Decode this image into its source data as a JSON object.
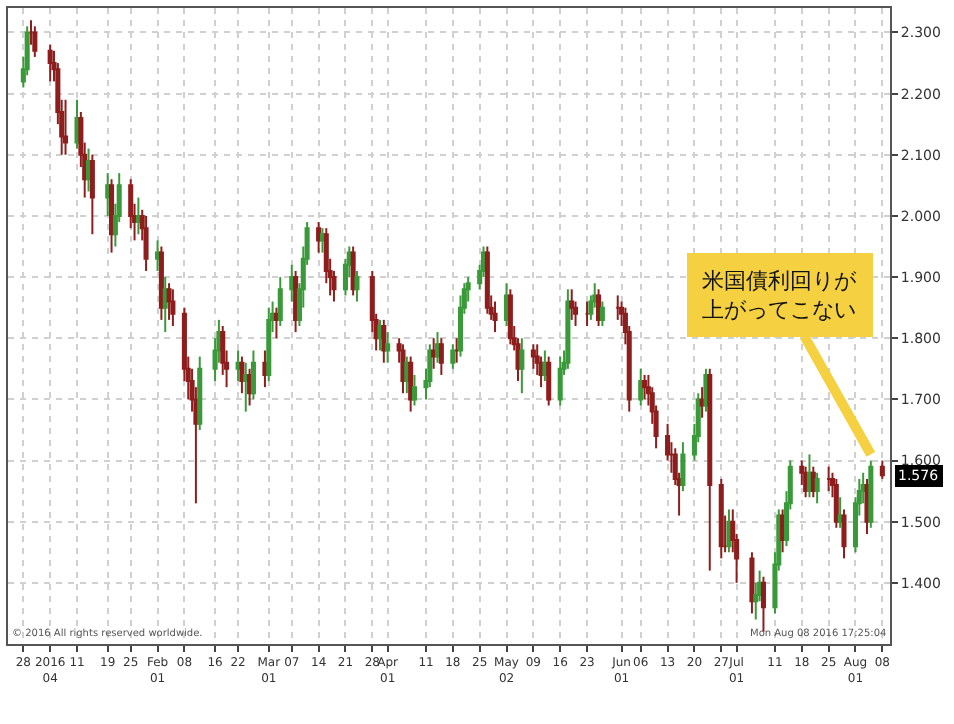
{
  "chart_data": {
    "type": "candlestick",
    "x": [
      "2015-12-28",
      "2015-12-29",
      "2015-12-30",
      "2015-12-31",
      "2016-01-04",
      "2016-01-05",
      "2016-01-06",
      "2016-01-07",
      "2016-01-08",
      "2016-01-11",
      "2016-01-12",
      "2016-01-13",
      "2016-01-14",
      "2016-01-15",
      "2016-01-19",
      "2016-01-20",
      "2016-01-21",
      "2016-01-22",
      "2016-01-25",
      "2016-01-26",
      "2016-01-27",
      "2016-01-28",
      "2016-01-29",
      "2016-02-01",
      "2016-02-02",
      "2016-02-03",
      "2016-02-04",
      "2016-02-05",
      "2016-02-08",
      "2016-02-09",
      "2016-02-10",
      "2016-02-11",
      "2016-02-12",
      "2016-02-16",
      "2016-02-17",
      "2016-02-18",
      "2016-02-19",
      "2016-02-22",
      "2016-02-23",
      "2016-02-24",
      "2016-02-25",
      "2016-02-26",
      "2016-02-29",
      "2016-03-01",
      "2016-03-02",
      "2016-03-03",
      "2016-03-04",
      "2016-03-07",
      "2016-03-08",
      "2016-03-09",
      "2016-03-10",
      "2016-03-11",
      "2016-03-14",
      "2016-03-15",
      "2016-03-16",
      "2016-03-17",
      "2016-03-18",
      "2016-03-21",
      "2016-03-22",
      "2016-03-23",
      "2016-03-24",
      "2016-03-28",
      "2016-03-29",
      "2016-03-30",
      "2016-03-31",
      "2016-04-01",
      "2016-04-04",
      "2016-04-05",
      "2016-04-06",
      "2016-04-07",
      "2016-04-08",
      "2016-04-11",
      "2016-04-12",
      "2016-04-13",
      "2016-04-14",
      "2016-04-15",
      "2016-04-18",
      "2016-04-19",
      "2016-04-20",
      "2016-04-21",
      "2016-04-22",
      "2016-04-25",
      "2016-04-26",
      "2016-04-27",
      "2016-04-28",
      "2016-04-29",
      "2016-05-02",
      "2016-05-03",
      "2016-05-04",
      "2016-05-05",
      "2016-05-06",
      "2016-05-09",
      "2016-05-10",
      "2016-05-11",
      "2016-05-12",
      "2016-05-13",
      "2016-05-16",
      "2016-05-17",
      "2016-05-18",
      "2016-05-19",
      "2016-05-20",
      "2016-05-23",
      "2016-05-24",
      "2016-05-25",
      "2016-05-26",
      "2016-05-27",
      "2016-05-31",
      "2016-06-01",
      "2016-06-02",
      "2016-06-03",
      "2016-06-06",
      "2016-06-07",
      "2016-06-08",
      "2016-06-09",
      "2016-06-10",
      "2016-06-13",
      "2016-06-14",
      "2016-06-15",
      "2016-06-16",
      "2016-06-17",
      "2016-06-20",
      "2016-06-21",
      "2016-06-22",
      "2016-06-23",
      "2016-06-24",
      "2016-06-27",
      "2016-06-28",
      "2016-06-29",
      "2016-06-30",
      "2016-07-01",
      "2016-07-05",
      "2016-07-06",
      "2016-07-07",
      "2016-07-08",
      "2016-07-11",
      "2016-07-12",
      "2016-07-13",
      "2016-07-14",
      "2016-07-15",
      "2016-07-18",
      "2016-07-19",
      "2016-07-20",
      "2016-07-21",
      "2016-07-22",
      "2016-07-25",
      "2016-07-26",
      "2016-07-27",
      "2016-07-28",
      "2016-07-29",
      "2016-08-01",
      "2016-08-02",
      "2016-08-03",
      "2016-08-04",
      "2016-08-05",
      "2016-08-08"
    ],
    "ohlc": [
      [
        2.22,
        2.26,
        2.21,
        2.24
      ],
      [
        2.24,
        2.31,
        2.23,
        2.3
      ],
      [
        2.3,
        2.32,
        2.28,
        2.3
      ],
      [
        2.3,
        2.31,
        2.26,
        2.27
      ],
      [
        2.27,
        2.28,
        2.22,
        2.25
      ],
      [
        2.25,
        2.27,
        2.22,
        2.24
      ],
      [
        2.24,
        2.25,
        2.15,
        2.17
      ],
      [
        2.17,
        2.19,
        2.1,
        2.13
      ],
      [
        2.13,
        2.19,
        2.1,
        2.12
      ],
      [
        2.12,
        2.19,
        2.11,
        2.16
      ],
      [
        2.16,
        2.17,
        2.08,
        2.1
      ],
      [
        2.1,
        2.12,
        2.03,
        2.06
      ],
      [
        2.06,
        2.11,
        2.04,
        2.09
      ],
      [
        2.09,
        2.1,
        1.97,
        2.03
      ],
      [
        2.03,
        2.07,
        2.0,
        2.05
      ],
      [
        2.05,
        2.06,
        1.94,
        1.97
      ],
      [
        1.97,
        2.02,
        1.95,
        2.0
      ],
      [
        2.0,
        2.07,
        1.99,
        2.05
      ],
      [
        2.05,
        2.06,
        1.98,
        2.0
      ],
      [
        2.0,
        2.02,
        1.96,
        1.99
      ],
      [
        1.99,
        2.03,
        1.97,
        2.0
      ],
      [
        2.0,
        2.01,
        1.96,
        1.98
      ],
      [
        1.98,
        2.0,
        1.91,
        1.93
      ],
      [
        1.93,
        1.96,
        1.91,
        1.94
      ],
      [
        1.94,
        1.95,
        1.83,
        1.85
      ],
      [
        1.85,
        1.9,
        1.81,
        1.88
      ],
      [
        1.88,
        1.89,
        1.83,
        1.86
      ],
      [
        1.86,
        1.88,
        1.82,
        1.84
      ],
      [
        1.84,
        1.85,
        1.73,
        1.75
      ],
      [
        1.75,
        1.77,
        1.7,
        1.73
      ],
      [
        1.73,
        1.75,
        1.68,
        1.7
      ],
      [
        1.7,
        1.72,
        1.53,
        1.66
      ],
      [
        1.66,
        1.77,
        1.65,
        1.75
      ],
      [
        1.75,
        1.8,
        1.73,
        1.78
      ],
      [
        1.78,
        1.83,
        1.76,
        1.81
      ],
      [
        1.81,
        1.82,
        1.74,
        1.76
      ],
      [
        1.76,
        1.78,
        1.72,
        1.75
      ],
      [
        1.75,
        1.78,
        1.73,
        1.76
      ],
      [
        1.76,
        1.77,
        1.71,
        1.73
      ],
      [
        1.73,
        1.76,
        1.68,
        1.74
      ],
      [
        1.74,
        1.75,
        1.69,
        1.71
      ],
      [
        1.71,
        1.78,
        1.7,
        1.76
      ],
      [
        1.76,
        1.78,
        1.72,
        1.74
      ],
      [
        1.74,
        1.85,
        1.73,
        1.83
      ],
      [
        1.83,
        1.86,
        1.81,
        1.84
      ],
      [
        1.84,
        1.85,
        1.8,
        1.83
      ],
      [
        1.83,
        1.9,
        1.82,
        1.88
      ],
      [
        1.88,
        1.92,
        1.86,
        1.9
      ],
      [
        1.9,
        1.91,
        1.81,
        1.83
      ],
      [
        1.83,
        1.89,
        1.82,
        1.88
      ],
      [
        1.88,
        1.95,
        1.85,
        1.93
      ],
      [
        1.93,
        1.99,
        1.92,
        1.98
      ],
      [
        1.98,
        1.99,
        1.94,
        1.96
      ],
      [
        1.96,
        1.98,
        1.94,
        1.97
      ],
      [
        1.97,
        1.98,
        1.89,
        1.91
      ],
      [
        1.91,
        1.93,
        1.87,
        1.9
      ],
      [
        1.9,
        1.91,
        1.86,
        1.88
      ],
      [
        1.88,
        1.93,
        1.87,
        1.92
      ],
      [
        1.92,
        1.95,
        1.9,
        1.94
      ],
      [
        1.94,
        1.95,
        1.87,
        1.88
      ],
      [
        1.88,
        1.91,
        1.86,
        1.9
      ],
      [
        1.9,
        1.91,
        1.81,
        1.83
      ],
      [
        1.83,
        1.84,
        1.78,
        1.8
      ],
      [
        1.8,
        1.83,
        1.78,
        1.82
      ],
      [
        1.82,
        1.83,
        1.76,
        1.78
      ],
      [
        1.78,
        1.81,
        1.76,
        1.79
      ],
      [
        1.79,
        1.8,
        1.76,
        1.78
      ],
      [
        1.78,
        1.79,
        1.71,
        1.73
      ],
      [
        1.73,
        1.77,
        1.71,
        1.76
      ],
      [
        1.76,
        1.77,
        1.68,
        1.7
      ],
      [
        1.7,
        1.74,
        1.69,
        1.72
      ],
      [
        1.72,
        1.75,
        1.7,
        1.73
      ],
      [
        1.73,
        1.79,
        1.72,
        1.78
      ],
      [
        1.78,
        1.8,
        1.75,
        1.77
      ],
      [
        1.77,
        1.81,
        1.76,
        1.79
      ],
      [
        1.79,
        1.8,
        1.74,
        1.76
      ],
      [
        1.76,
        1.79,
        1.75,
        1.78
      ],
      [
        1.78,
        1.8,
        1.76,
        1.78
      ],
      [
        1.78,
        1.87,
        1.77,
        1.85
      ],
      [
        1.85,
        1.89,
        1.84,
        1.88
      ],
      [
        1.88,
        1.9,
        1.86,
        1.89
      ],
      [
        1.89,
        1.92,
        1.88,
        1.91
      ],
      [
        1.91,
        1.95,
        1.9,
        1.94
      ],
      [
        1.94,
        1.95,
        1.84,
        1.85
      ],
      [
        1.85,
        1.87,
        1.83,
        1.84
      ],
      [
        1.84,
        1.86,
        1.81,
        1.83
      ],
      [
        1.83,
        1.89,
        1.82,
        1.87
      ],
      [
        1.87,
        1.88,
        1.79,
        1.8
      ],
      [
        1.8,
        1.82,
        1.78,
        1.79
      ],
      [
        1.79,
        1.8,
        1.73,
        1.75
      ],
      [
        1.75,
        1.8,
        1.71,
        1.78
      ],
      [
        1.78,
        1.79,
        1.75,
        1.77
      ],
      [
        1.77,
        1.79,
        1.74,
        1.76
      ],
      [
        1.76,
        1.77,
        1.72,
        1.74
      ],
      [
        1.74,
        1.78,
        1.73,
        1.76
      ],
      [
        1.76,
        1.77,
        1.69,
        1.7
      ],
      [
        1.7,
        1.77,
        1.69,
        1.75
      ],
      [
        1.75,
        1.78,
        1.74,
        1.76
      ],
      [
        1.76,
        1.88,
        1.75,
        1.86
      ],
      [
        1.86,
        1.88,
        1.83,
        1.85
      ],
      [
        1.85,
        1.86,
        1.82,
        1.84
      ],
      [
        1.84,
        1.86,
        1.82,
        1.84
      ],
      [
        1.84,
        1.87,
        1.83,
        1.86
      ],
      [
        1.86,
        1.89,
        1.85,
        1.87
      ],
      [
        1.87,
        1.88,
        1.82,
        1.83
      ],
      [
        1.83,
        1.86,
        1.82,
        1.85
      ],
      [
        1.85,
        1.87,
        1.83,
        1.85
      ],
      [
        1.85,
        1.86,
        1.82,
        1.84
      ],
      [
        1.84,
        1.85,
        1.79,
        1.81
      ],
      [
        1.81,
        1.82,
        1.68,
        1.7
      ],
      [
        1.7,
        1.75,
        1.69,
        1.73
      ],
      [
        1.73,
        1.74,
        1.7,
        1.72
      ],
      [
        1.72,
        1.74,
        1.69,
        1.71
      ],
      [
        1.71,
        1.72,
        1.66,
        1.68
      ],
      [
        1.68,
        1.69,
        1.62,
        1.64
      ],
      [
        1.64,
        1.66,
        1.6,
        1.61
      ],
      [
        1.61,
        1.63,
        1.58,
        1.61
      ],
      [
        1.61,
        1.62,
        1.56,
        1.57
      ],
      [
        1.57,
        1.58,
        1.51,
        1.56
      ],
      [
        1.56,
        1.63,
        1.55,
        1.61
      ],
      [
        1.61,
        1.66,
        1.6,
        1.64
      ],
      [
        1.64,
        1.71,
        1.63,
        1.7
      ],
      [
        1.7,
        1.72,
        1.67,
        1.69
      ],
      [
        1.69,
        1.75,
        1.68,
        1.74
      ],
      [
        1.74,
        1.75,
        1.42,
        1.56
      ],
      [
        1.56,
        1.57,
        1.44,
        1.46
      ],
      [
        1.46,
        1.51,
        1.45,
        1.46
      ],
      [
        1.46,
        1.52,
        1.45,
        1.5
      ],
      [
        1.5,
        1.52,
        1.45,
        1.47
      ],
      [
        1.47,
        1.48,
        1.4,
        1.44
      ],
      [
        1.44,
        1.45,
        1.35,
        1.37
      ],
      [
        1.37,
        1.4,
        1.34,
        1.38
      ],
      [
        1.38,
        1.42,
        1.37,
        1.4
      ],
      [
        1.4,
        1.41,
        1.32,
        1.36
      ],
      [
        1.36,
        1.45,
        1.35,
        1.43
      ],
      [
        1.43,
        1.52,
        1.42,
        1.51
      ],
      [
        1.51,
        1.52,
        1.45,
        1.47
      ],
      [
        1.47,
        1.55,
        1.46,
        1.53
      ],
      [
        1.53,
        1.6,
        1.52,
        1.59
      ],
      [
        1.59,
        1.6,
        1.56,
        1.58
      ],
      [
        1.58,
        1.59,
        1.54,
        1.55
      ],
      [
        1.55,
        1.61,
        1.54,
        1.58
      ],
      [
        1.58,
        1.59,
        1.54,
        1.55
      ],
      [
        1.55,
        1.58,
        1.53,
        1.57
      ],
      [
        1.57,
        1.59,
        1.55,
        1.57
      ],
      [
        1.57,
        1.58,
        1.54,
        1.56
      ],
      [
        1.56,
        1.57,
        1.49,
        1.5
      ],
      [
        1.5,
        1.54,
        1.49,
        1.51
      ],
      [
        1.51,
        1.52,
        1.44,
        1.46
      ],
      [
        1.46,
        1.54,
        1.45,
        1.53
      ],
      [
        1.53,
        1.57,
        1.51,
        1.55
      ],
      [
        1.55,
        1.58,
        1.53,
        1.56
      ],
      [
        1.56,
        1.57,
        1.48,
        1.5
      ],
      [
        1.5,
        1.6,
        1.49,
        1.59
      ],
      [
        1.59,
        1.6,
        1.57,
        1.576
      ]
    ],
    "colors": [
      "#3a9a3a",
      "#3a9a3a",
      "#8e1e1e",
      "#8e1e1e",
      "#8e1e1e",
      "#8e1e1e",
      "#8e1e1e",
      "#8e1e1e",
      "#8e1e1e",
      "#3a9a3a",
      "#8e1e1e",
      "#8e1e1e",
      "#3a9a3a",
      "#8e1e1e",
      "#3a9a3a",
      "#8e1e1e",
      "#3a9a3a",
      "#3a9a3a",
      "#8e1e1e",
      "#8e1e1e",
      "#3a9a3a",
      "#8e1e1e",
      "#8e1e1e",
      "#3a9a3a",
      "#8e1e1e",
      "#3a9a3a",
      "#8e1e1e",
      "#8e1e1e",
      "#8e1e1e",
      "#8e1e1e",
      "#8e1e1e",
      "#8e1e1e",
      "#3a9a3a",
      "#3a9a3a",
      "#3a9a3a",
      "#8e1e1e",
      "#8e1e1e",
      "#3a9a3a",
      "#8e1e1e",
      "#3a9a3a",
      "#8e1e1e",
      "#3a9a3a",
      "#8e1e1e",
      "#3a9a3a",
      "#3a9a3a",
      "#8e1e1e",
      "#3a9a3a",
      "#3a9a3a",
      "#8e1e1e",
      "#3a9a3a",
      "#3a9a3a",
      "#3a9a3a",
      "#8e1e1e",
      "#3a9a3a",
      "#8e1e1e",
      "#8e1e1e",
      "#8e1e1e",
      "#3a9a3a",
      "#3a9a3a",
      "#8e1e1e",
      "#3a9a3a",
      "#8e1e1e",
      "#8e1e1e",
      "#3a9a3a",
      "#8e1e1e",
      "#3a9a3a",
      "#8e1e1e",
      "#8e1e1e",
      "#3a9a3a",
      "#8e1e1e",
      "#3a9a3a",
      "#3a9a3a",
      "#3a9a3a",
      "#8e1e1e",
      "#3a9a3a",
      "#8e1e1e",
      "#3a9a3a",
      "#8e1e1e",
      "#3a9a3a",
      "#3a9a3a",
      "#3a9a3a",
      "#3a9a3a",
      "#3a9a3a",
      "#8e1e1e",
      "#8e1e1e",
      "#8e1e1e",
      "#3a9a3a",
      "#8e1e1e",
      "#8e1e1e",
      "#8e1e1e",
      "#3a9a3a",
      "#8e1e1e",
      "#8e1e1e",
      "#8e1e1e",
      "#3a9a3a",
      "#8e1e1e",
      "#3a9a3a",
      "#3a9a3a",
      "#3a9a3a",
      "#8e1e1e",
      "#8e1e1e",
      "#8e1e1e",
      "#3a9a3a",
      "#3a9a3a",
      "#8e1e1e",
      "#3a9a3a",
      "#8e1e1e",
      "#8e1e1e",
      "#8e1e1e",
      "#8e1e1e",
      "#3a9a3a",
      "#8e1e1e",
      "#8e1e1e",
      "#8e1e1e",
      "#8e1e1e",
      "#8e1e1e",
      "#8e1e1e",
      "#8e1e1e",
      "#8e1e1e",
      "#3a9a3a",
      "#3a9a3a",
      "#3a9a3a",
      "#8e1e1e",
      "#3a9a3a",
      "#8e1e1e",
      "#8e1e1e",
      "#8e1e1e",
      "#3a9a3a",
      "#8e1e1e",
      "#8e1e1e",
      "#8e1e1e",
      "#3a9a3a",
      "#3a9a3a",
      "#8e1e1e",
      "#3a9a3a",
      "#3a9a3a",
      "#8e1e1e",
      "#3a9a3a",
      "#3a9a3a",
      "#8e1e1e",
      "#8e1e1e",
      "#3a9a3a",
      "#8e1e1e",
      "#3a9a3a",
      "#8e1e1e",
      "#8e1e1e",
      "#8e1e1e",
      "#3a9a3a",
      "#8e1e1e",
      "#3a9a3a",
      "#3a9a3a",
      "#3a9a3a",
      "#8e1e1e",
      "#3a9a3a",
      "#8e1e1e"
    ],
    "xlim": [
      "2015-12-24",
      "2016-08-10"
    ],
    "xticks": [
      {
        "value": "2015-12-28",
        "label": "28"
      },
      {
        "value": "2016-01-04",
        "label": "2016\n04"
      },
      {
        "value": "2016-01-11",
        "label": "11"
      },
      {
        "value": "2016-01-19",
        "label": "19"
      },
      {
        "value": "2016-01-25",
        "label": "25"
      },
      {
        "value": "2016-02-01",
        "label": "Feb\n01"
      },
      {
        "value": "2016-02-08",
        "label": "08"
      },
      {
        "value": "2016-02-16",
        "label": "16"
      },
      {
        "value": "2016-02-22",
        "label": "22"
      },
      {
        "value": "2016-03-01",
        "label": "Mar\n01"
      },
      {
        "value": "2016-03-07",
        "label": "07"
      },
      {
        "value": "2016-03-14",
        "label": "14"
      },
      {
        "value": "2016-03-21",
        "label": "21"
      },
      {
        "value": "2016-03-28",
        "label": "28"
      },
      {
        "value": "2016-04-01",
        "label": "Apr\n01"
      },
      {
        "value": "2016-04-11",
        "label": "11"
      },
      {
        "value": "2016-04-18",
        "label": "18"
      },
      {
        "value": "2016-04-25",
        "label": "25"
      },
      {
        "value": "2016-05-02",
        "label": "May\n02"
      },
      {
        "value": "2016-05-09",
        "label": "09"
      },
      {
        "value": "2016-05-16",
        "label": "16"
      },
      {
        "value": "2016-05-23",
        "label": "23"
      },
      {
        "value": "2016-06-01",
        "label": "Jun\n01"
      },
      {
        "value": "2016-06-06",
        "label": "06"
      },
      {
        "value": "2016-06-13",
        "label": "13"
      },
      {
        "value": "2016-06-20",
        "label": "20"
      },
      {
        "value": "2016-06-27",
        "label": "27"
      },
      {
        "value": "2016-07-01",
        "label": "Jul\n01"
      },
      {
        "value": "2016-07-11",
        "label": "11"
      },
      {
        "value": "2016-07-18",
        "label": "18"
      },
      {
        "value": "2016-07-25",
        "label": "25"
      },
      {
        "value": "2016-08-01",
        "label": "Aug\n01"
      },
      {
        "value": "2016-08-08",
        "label": "08"
      }
    ],
    "ylim": [
      1.3,
      2.34
    ],
    "yticks": [
      {
        "value": 1.4,
        "label": "1.400"
      },
      {
        "value": 1.5,
        "label": "1.500"
      },
      {
        "value": 1.6,
        "label": "1.600"
      },
      {
        "value": 1.7,
        "label": "1.700"
      },
      {
        "value": 1.8,
        "label": "1.800"
      },
      {
        "value": 1.9,
        "label": "1.900"
      },
      {
        "value": 2.0,
        "label": "2.000"
      },
      {
        "value": 2.1,
        "label": "2.100"
      },
      {
        "value": 2.2,
        "label": "2.200"
      },
      {
        "value": 2.3,
        "label": "2.300"
      }
    ],
    "grid": true,
    "annotations": [
      {
        "text": "米国債利回りが上がってこない",
        "x": "2016-08-05",
        "y": 1.61
      },
      "1.576",
      "© 2016 All rights reserved worldwide.",
      "Mon Aug 08 2016 17:25:04"
    ]
  }
}
